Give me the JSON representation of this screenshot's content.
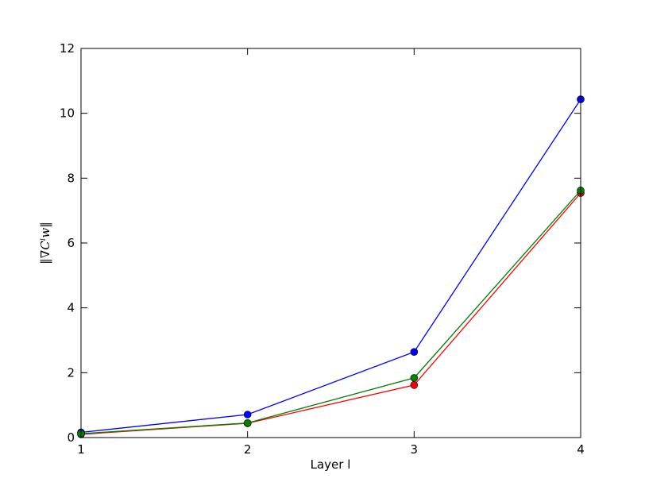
{
  "chart_data": {
    "type": "line",
    "xlabel": "Layer l",
    "ylabel": "‖∇Cˡw‖",
    "x": [
      1,
      2,
      3,
      4
    ],
    "series": [
      {
        "color": "#0000ff",
        "values": [
          0.16,
          0.71,
          2.64,
          10.43
        ]
      },
      {
        "color": "#ff0000",
        "values": [
          0.1,
          0.44,
          1.62,
          7.54
        ]
      },
      {
        "color": "#008000",
        "values": [
          0.12,
          0.45,
          1.84,
          7.62
        ]
      }
    ],
    "xlim": [
      1,
      4
    ],
    "xticks": [
      1,
      2,
      3,
      4
    ],
    "ylim": [
      0,
      12
    ],
    "yticks": [
      0,
      2,
      4,
      6,
      8,
      10,
      12
    ],
    "grid": false,
    "markers": true
  }
}
